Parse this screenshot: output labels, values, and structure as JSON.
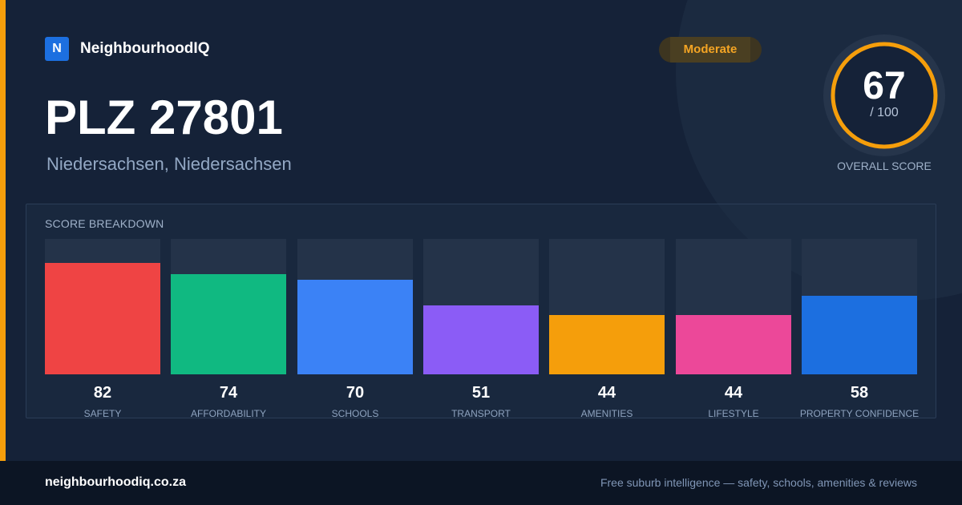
{
  "theme": {
    "accent": "#f59e0b",
    "brand_blue": "#1c6fe0",
    "ring_track": "#26354b"
  },
  "brand": {
    "logo_letter": "N",
    "name": "NeighbourhoodIQ"
  },
  "badge": {
    "label": "Moderate",
    "color": "#f5a524"
  },
  "title": "PLZ 27801",
  "subtitle": "Niedersachsen, Niedersachsen",
  "overall": {
    "score": 67,
    "max_label": "/ 100",
    "caption": "OVERALL SCORE"
  },
  "breakdown": {
    "heading": "SCORE BREAKDOWN"
  },
  "chart_data": {
    "type": "bar",
    "ylim": [
      0,
      100
    ],
    "categories": [
      "SAFETY",
      "AFFORDABILITY",
      "SCHOOLS",
      "TRANSPORT",
      "AMENITIES",
      "LIFESTYLE",
      "PROPERTY CONFIDENCE"
    ],
    "values": [
      82,
      74,
      70,
      51,
      44,
      44,
      58
    ],
    "colors": [
      "#ef4444",
      "#10b981",
      "#3b82f6",
      "#8b5cf6",
      "#f59e0b",
      "#ec4899",
      "#1c6fe0"
    ]
  },
  "footer": {
    "url": "neighbourhoodiq.co.za",
    "tagline": "Free suburb intelligence — safety, schools, amenities & reviews"
  }
}
